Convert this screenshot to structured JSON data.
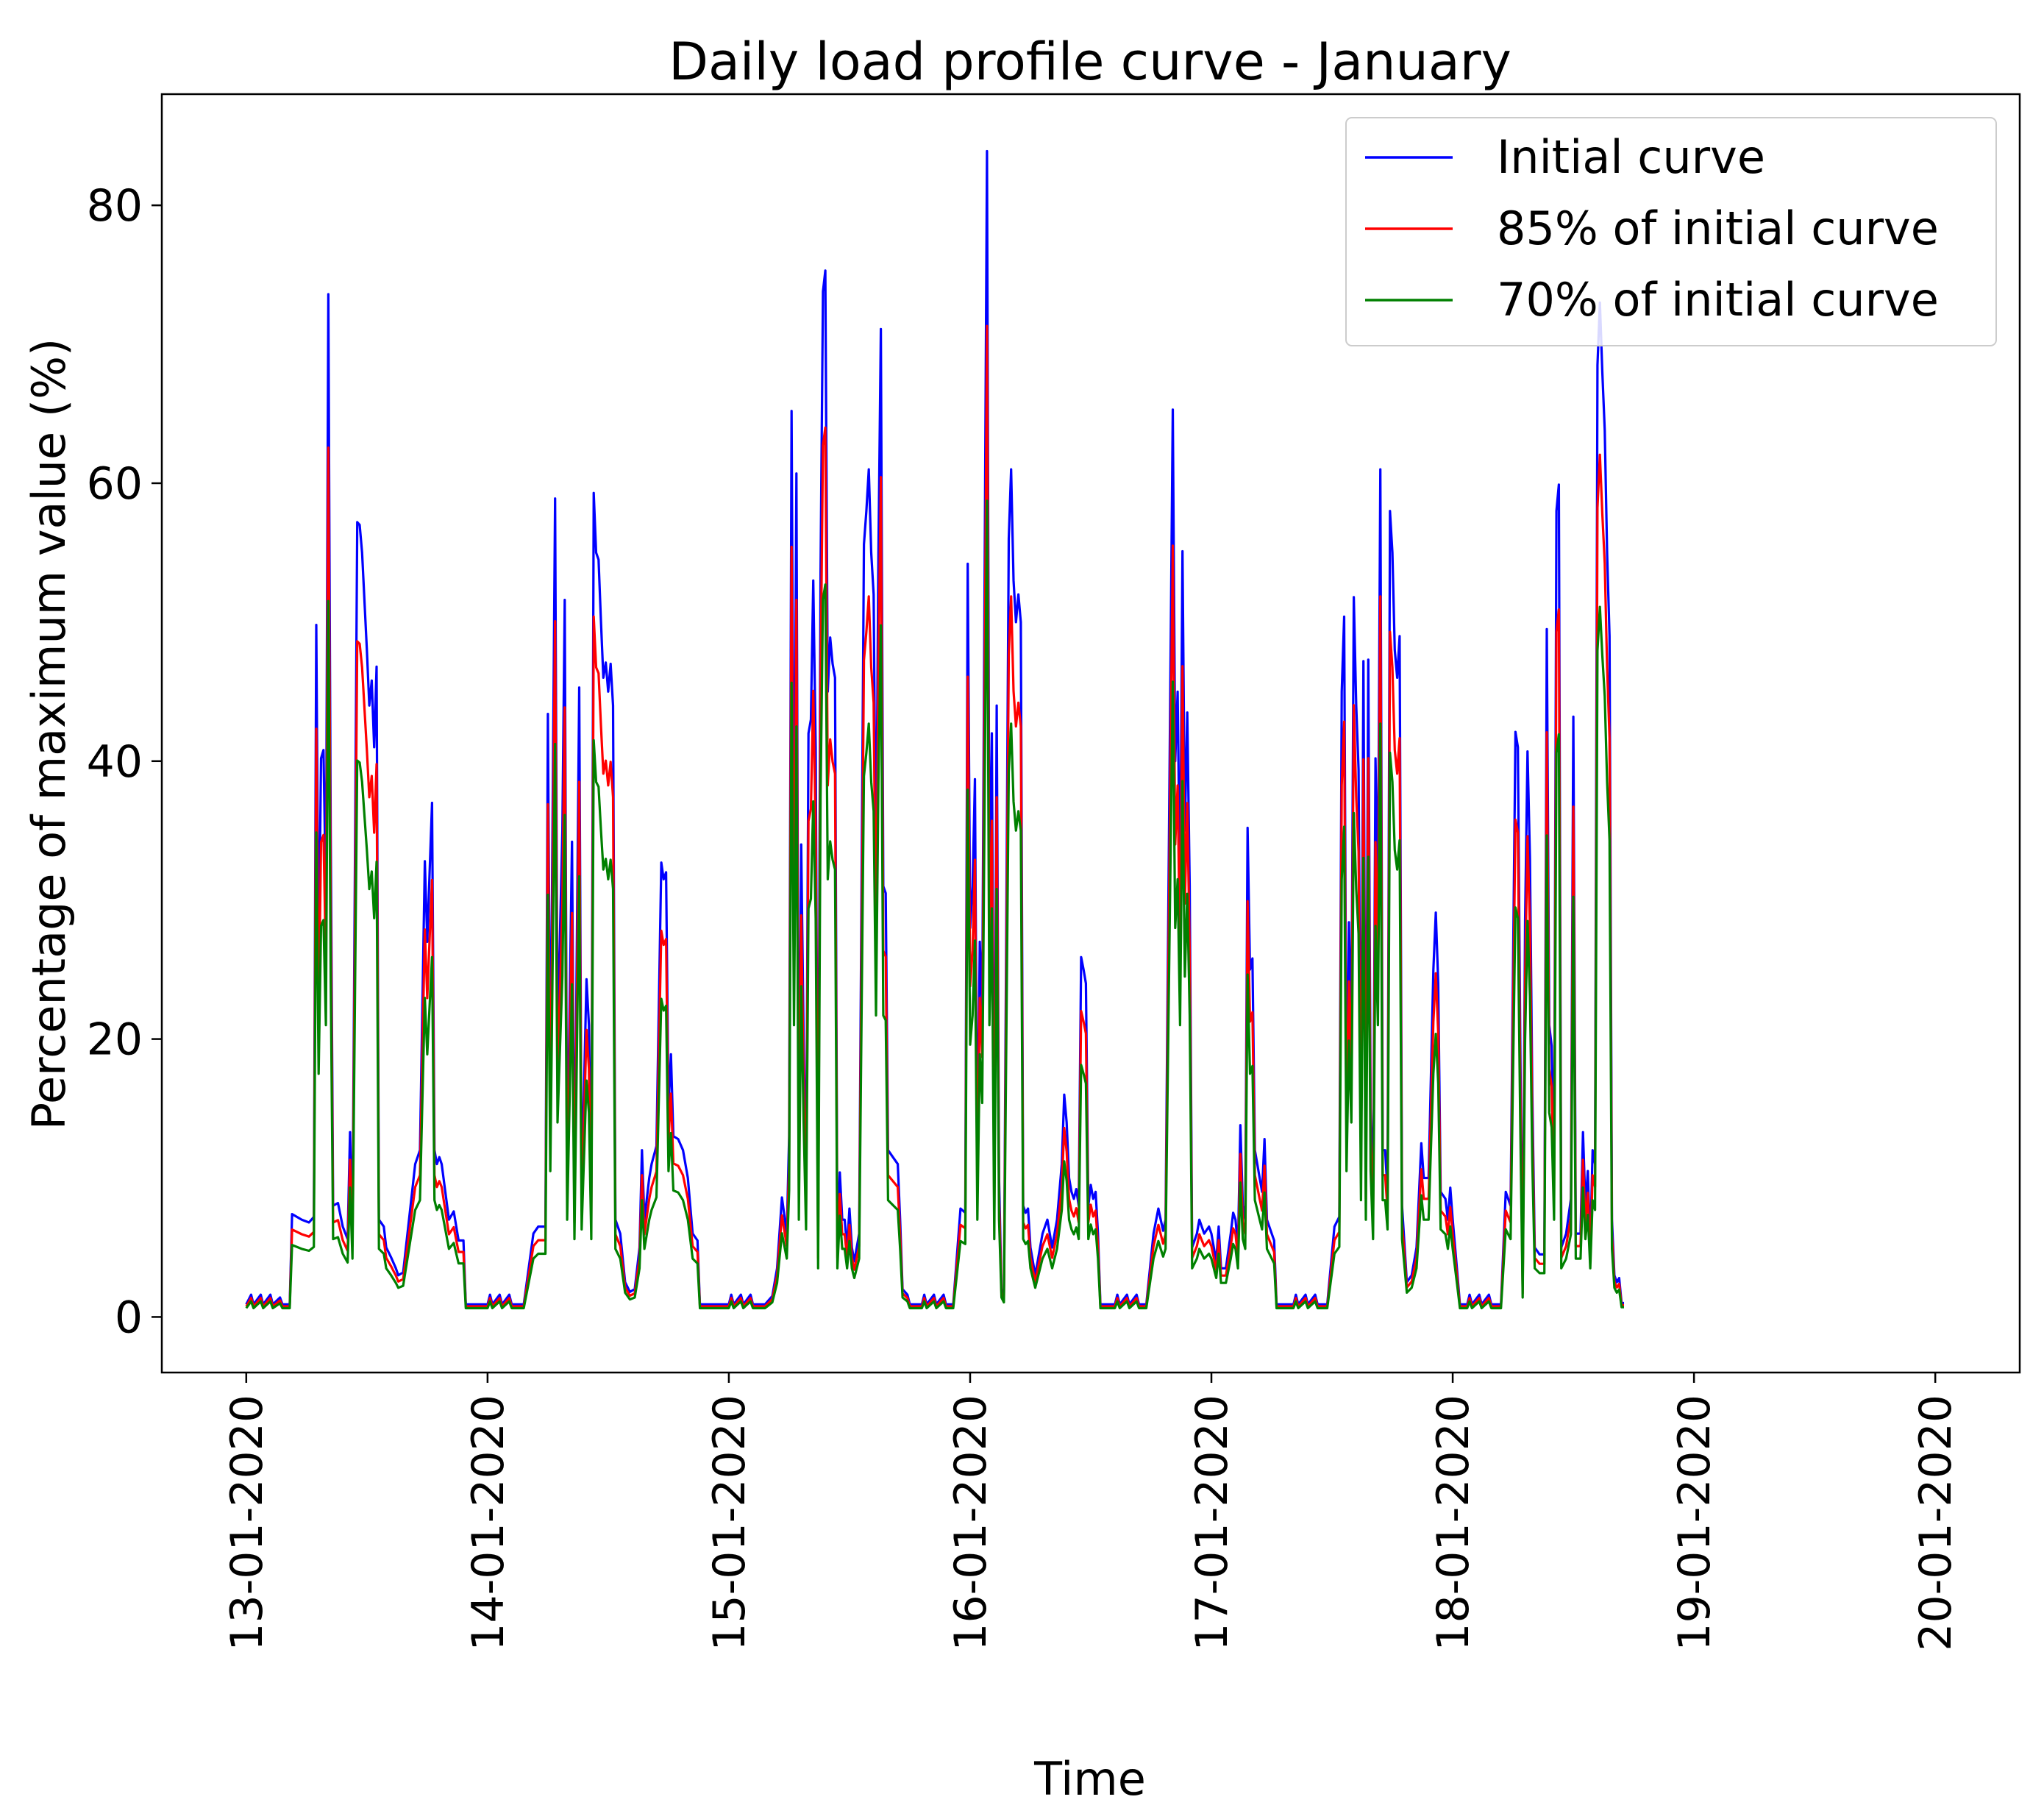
{
  "chart_data": {
    "type": "line",
    "title": "Daily load profile curve - January",
    "xlabel": "Time",
    "ylabel": "Percentage of maximum value (%)",
    "x_range_days": [
      -0.35,
      7.35
    ],
    "ylim": [
      -4,
      88
    ],
    "yticks": [
      0,
      20,
      40,
      60,
      80
    ],
    "xticks": [
      {
        "day": 0,
        "label": "13-01-2020"
      },
      {
        "day": 1,
        "label": "14-01-2020"
      },
      {
        "day": 2,
        "label": "15-01-2020"
      },
      {
        "day": 3,
        "label": "16-01-2020"
      },
      {
        "day": 4,
        "label": "17-01-2020"
      },
      {
        "day": 5,
        "label": "18-01-2020"
      },
      {
        "day": 6,
        "label": "19-01-2020"
      },
      {
        "day": 7,
        "label": "20-01-2020"
      }
    ],
    "grid": false,
    "legend_position": "top-right",
    "series": [
      {
        "name": "Initial curve",
        "color": "#0000ff",
        "factor": 1.0
      },
      {
        "name": "85% of initial curve",
        "color": "#ff0000",
        "factor": 0.85
      },
      {
        "name": "70% of initial curve",
        "color": "#008000",
        "factor": 0.7
      }
    ],
    "base_curve_note": "Initial curve values in % of maximum, sampled points as [day_offset, value]",
    "base_curve": [
      [
        0.0,
        0.9
      ],
      [
        0.02,
        1.6
      ],
      [
        0.03,
        0.9
      ],
      [
        0.06,
        1.6
      ],
      [
        0.07,
        0.9
      ],
      [
        0.1,
        1.6
      ],
      [
        0.11,
        0.9
      ],
      [
        0.14,
        1.4
      ],
      [
        0.15,
        0.9
      ],
      [
        0.18,
        0.9
      ],
      [
        0.19,
        7.4
      ],
      [
        0.23,
        7.0
      ],
      [
        0.26,
        6.8
      ],
      [
        0.28,
        7.2
      ],
      [
        0.29,
        49.8
      ],
      [
        0.3,
        25.0
      ],
      [
        0.31,
        40.2
      ],
      [
        0.32,
        40.8
      ],
      [
        0.33,
        30.0
      ],
      [
        0.34,
        73.6
      ],
      [
        0.35,
        35.0
      ],
      [
        0.36,
        8.0
      ],
      [
        0.38,
        8.2
      ],
      [
        0.4,
        6.5
      ],
      [
        0.42,
        5.6
      ],
      [
        0.43,
        13.3
      ],
      [
        0.44,
        6.0
      ],
      [
        0.46,
        57.2
      ],
      [
        0.47,
        57.0
      ],
      [
        0.48,
        55.0
      ],
      [
        0.5,
        48.0
      ],
      [
        0.51,
        44.0
      ],
      [
        0.52,
        45.8
      ],
      [
        0.53,
        41.0
      ],
      [
        0.54,
        46.8
      ],
      [
        0.55,
        7.0
      ],
      [
        0.57,
        6.5
      ],
      [
        0.58,
        5.0
      ],
      [
        0.6,
        4.3
      ],
      [
        0.62,
        3.5
      ],
      [
        0.63,
        3.0
      ],
      [
        0.65,
        3.2
      ],
      [
        0.7,
        11.0
      ],
      [
        0.72,
        12.0
      ],
      [
        0.74,
        32.8
      ],
      [
        0.75,
        27.0
      ],
      [
        0.76,
        32.0
      ],
      [
        0.77,
        37.0
      ],
      [
        0.78,
        12.0
      ],
      [
        0.79,
        11.0
      ],
      [
        0.8,
        11.5
      ],
      [
        0.81,
        11.0
      ],
      [
        0.84,
        7.0
      ],
      [
        0.86,
        7.6
      ],
      [
        0.88,
        5.5
      ],
      [
        0.9,
        5.5
      ],
      [
        0.91,
        0.9
      ],
      [
        1.0,
        0.9
      ],
      [
        1.01,
        1.6
      ],
      [
        1.02,
        0.9
      ],
      [
        1.05,
        1.6
      ],
      [
        1.06,
        0.9
      ],
      [
        1.09,
        1.6
      ],
      [
        1.1,
        0.9
      ],
      [
        1.15,
        0.9
      ],
      [
        1.19,
        6.0
      ],
      [
        1.21,
        6.5
      ],
      [
        1.24,
        6.5
      ],
      [
        1.25,
        43.4
      ],
      [
        1.26,
        15.0
      ],
      [
        1.28,
        58.9
      ],
      [
        1.29,
        20.0
      ],
      [
        1.31,
        35.0
      ],
      [
        1.32,
        51.6
      ],
      [
        1.33,
        10.0
      ],
      [
        1.35,
        34.2
      ],
      [
        1.36,
        8.0
      ],
      [
        1.38,
        45.3
      ],
      [
        1.39,
        9.0
      ],
      [
        1.41,
        24.3
      ],
      [
        1.42,
        21.0
      ],
      [
        1.43,
        8.0
      ],
      [
        1.44,
        59.3
      ],
      [
        1.45,
        55.0
      ],
      [
        1.46,
        54.5
      ],
      [
        1.47,
        50.0
      ],
      [
        1.48,
        46.0
      ],
      [
        1.49,
        47.1
      ],
      [
        1.5,
        45.0
      ],
      [
        1.51,
        47.0
      ],
      [
        1.52,
        44.0
      ],
      [
        1.53,
        7.0
      ],
      [
        1.55,
        6.0
      ],
      [
        1.57,
        2.5
      ],
      [
        1.59,
        1.8
      ],
      [
        1.61,
        2.0
      ],
      [
        1.63,
        5.0
      ],
      [
        1.64,
        12.0
      ],
      [
        1.65,
        7.0
      ],
      [
        1.67,
        10.0
      ],
      [
        1.68,
        11.0
      ],
      [
        1.7,
        12.3
      ],
      [
        1.72,
        32.7
      ],
      [
        1.73,
        31.5
      ],
      [
        1.74,
        32.0
      ],
      [
        1.75,
        15.0
      ],
      [
        1.76,
        18.9
      ],
      [
        1.77,
        13.0
      ],
      [
        1.79,
        12.8
      ],
      [
        1.81,
        12.0
      ],
      [
        1.83,
        10.0
      ],
      [
        1.85,
        6.0
      ],
      [
        1.87,
        5.5
      ],
      [
        1.88,
        0.9
      ],
      [
        2.0,
        0.9
      ],
      [
        2.01,
        1.6
      ],
      [
        2.02,
        0.9
      ],
      [
        2.05,
        1.6
      ],
      [
        2.06,
        0.9
      ],
      [
        2.09,
        1.6
      ],
      [
        2.1,
        0.9
      ],
      [
        2.15,
        0.9
      ],
      [
        2.18,
        1.5
      ],
      [
        2.2,
        3.5
      ],
      [
        2.22,
        8.6
      ],
      [
        2.24,
        6.0
      ],
      [
        2.25,
        13.0
      ],
      [
        2.26,
        65.2
      ],
      [
        2.27,
        30.0
      ],
      [
        2.28,
        60.7
      ],
      [
        2.29,
        10.0
      ],
      [
        2.3,
        34.0
      ],
      [
        2.31,
        20.0
      ],
      [
        2.32,
        9.0
      ],
      [
        2.33,
        42.0
      ],
      [
        2.34,
        43.0
      ],
      [
        2.35,
        53.0
      ],
      [
        2.36,
        41.0
      ],
      [
        2.37,
        5.0
      ],
      [
        2.38,
        53.5
      ],
      [
        2.39,
        73.8
      ],
      [
        2.4,
        75.3
      ],
      [
        2.41,
        45.0
      ],
      [
        2.42,
        48.9
      ],
      [
        2.43,
        47.0
      ],
      [
        2.44,
        46.0
      ],
      [
        2.45,
        5.0
      ],
      [
        2.46,
        10.4
      ],
      [
        2.47,
        7.0
      ],
      [
        2.48,
        7.0
      ],
      [
        2.49,
        5.0
      ],
      [
        2.5,
        7.8
      ],
      [
        2.51,
        5.0
      ],
      [
        2.52,
        4.0
      ],
      [
        2.54,
        6.0
      ],
      [
        2.56,
        55.6
      ],
      [
        2.57,
        58.0
      ],
      [
        2.58,
        61.0
      ],
      [
        2.59,
        55.0
      ],
      [
        2.6,
        52.0
      ],
      [
        2.61,
        31.0
      ],
      [
        2.62,
        55.0
      ],
      [
        2.63,
        71.1
      ],
      [
        2.64,
        31.0
      ],
      [
        2.65,
        30.5
      ],
      [
        2.66,
        12.0
      ],
      [
        2.68,
        11.5
      ],
      [
        2.7,
        11.0
      ],
      [
        2.71,
        7.0
      ],
      [
        2.72,
        2.0
      ],
      [
        2.74,
        1.6
      ],
      [
        2.75,
        0.9
      ],
      [
        2.8,
        0.9
      ],
      [
        2.81,
        1.6
      ],
      [
        2.82,
        0.9
      ],
      [
        2.85,
        1.6
      ],
      [
        2.86,
        0.9
      ],
      [
        2.89,
        1.6
      ],
      [
        2.9,
        0.9
      ],
      [
        2.93,
        0.9
      ],
      [
        2.96,
        7.8
      ],
      [
        2.98,
        7.5
      ],
      [
        2.99,
        54.2
      ],
      [
        3.0,
        28.0
      ],
      [
        3.01,
        31.0
      ],
      [
        3.02,
        38.7
      ],
      [
        3.03,
        10.0
      ],
      [
        3.04,
        27.0
      ],
      [
        3.05,
        22.0
      ],
      [
        3.07,
        83.9
      ],
      [
        3.08,
        30.0
      ],
      [
        3.09,
        42.0
      ],
      [
        3.1,
        8.0
      ],
      [
        3.11,
        44.0
      ],
      [
        3.12,
        10.0
      ],
      [
        3.13,
        2.0
      ],
      [
        3.14,
        1.5
      ],
      [
        3.16,
        56.0
      ],
      [
        3.17,
        61.0
      ],
      [
        3.18,
        53.0
      ],
      [
        3.19,
        50.0
      ],
      [
        3.2,
        52.0
      ],
      [
        3.21,
        50.0
      ],
      [
        3.22,
        8.0
      ],
      [
        3.23,
        7.5
      ],
      [
        3.24,
        7.8
      ],
      [
        3.25,
        5.0
      ],
      [
        3.27,
        3.0
      ],
      [
        3.28,
        4.0
      ],
      [
        3.3,
        6.0
      ],
      [
        3.32,
        7.0
      ],
      [
        3.34,
        5.0
      ],
      [
        3.36,
        7.0
      ],
      [
        3.38,
        11.0
      ],
      [
        3.39,
        16.0
      ],
      [
        3.4,
        14.0
      ],
      [
        3.41,
        10.0
      ],
      [
        3.42,
        9.0
      ],
      [
        3.43,
        8.5
      ],
      [
        3.44,
        9.2
      ],
      [
        3.45,
        8.0
      ],
      [
        3.46,
        25.9
      ],
      [
        3.47,
        25.0
      ],
      [
        3.48,
        24.0
      ],
      [
        3.49,
        8.0
      ],
      [
        3.5,
        9.5
      ],
      [
        3.51,
        8.5
      ],
      [
        3.52,
        9.0
      ],
      [
        3.53,
        6.0
      ],
      [
        3.54,
        0.9
      ],
      [
        3.6,
        0.9
      ],
      [
        3.61,
        1.6
      ],
      [
        3.62,
        0.9
      ],
      [
        3.65,
        1.6
      ],
      [
        3.66,
        0.9
      ],
      [
        3.69,
        1.6
      ],
      [
        3.7,
        0.9
      ],
      [
        3.73,
        0.9
      ],
      [
        3.76,
        6.0
      ],
      [
        3.78,
        7.8
      ],
      [
        3.79,
        7.0
      ],
      [
        3.8,
        6.2
      ],
      [
        3.81,
        7.0
      ],
      [
        3.84,
        65.3
      ],
      [
        3.85,
        40.0
      ],
      [
        3.86,
        45.0
      ],
      [
        3.87,
        30.0
      ],
      [
        3.88,
        55.1
      ],
      [
        3.89,
        35.0
      ],
      [
        3.9,
        43.5
      ],
      [
        3.91,
        31.0
      ],
      [
        3.92,
        5.0
      ],
      [
        3.94,
        6.0
      ],
      [
        3.95,
        7.0
      ],
      [
        3.97,
        6.0
      ],
      [
        3.99,
        6.5
      ],
      [
        4.0,
        6.0
      ],
      [
        4.02,
        4.0
      ],
      [
        4.03,
        6.5
      ],
      [
        4.04,
        3.5
      ],
      [
        4.06,
        3.5
      ],
      [
        4.08,
        6.0
      ],
      [
        4.09,
        7.5
      ],
      [
        4.1,
        7.0
      ],
      [
        4.11,
        5.0
      ],
      [
        4.12,
        13.8
      ],
      [
        4.13,
        8.0
      ],
      [
        4.14,
        7.0
      ],
      [
        4.15,
        35.2
      ],
      [
        4.16,
        25.0
      ],
      [
        4.17,
        25.8
      ],
      [
        4.18,
        12.0
      ],
      [
        4.19,
        11.0
      ],
      [
        4.2,
        10.0
      ],
      [
        4.21,
        9.0
      ],
      [
        4.22,
        12.8
      ],
      [
        4.23,
        7.0
      ],
      [
        4.25,
        6.0
      ],
      [
        4.26,
        5.5
      ],
      [
        4.27,
        0.9
      ],
      [
        4.34,
        0.9
      ],
      [
        4.35,
        1.6
      ],
      [
        4.36,
        0.9
      ],
      [
        4.39,
        1.6
      ],
      [
        4.4,
        0.9
      ],
      [
        4.43,
        1.6
      ],
      [
        4.44,
        0.9
      ],
      [
        4.48,
        0.9
      ],
      [
        4.51,
        6.5
      ],
      [
        4.53,
        7.2
      ],
      [
        4.54,
        45.0
      ],
      [
        4.55,
        50.4
      ],
      [
        4.56,
        15.0
      ],
      [
        4.57,
        28.4
      ],
      [
        4.58,
        20.0
      ],
      [
        4.59,
        51.8
      ],
      [
        4.6,
        44.0
      ],
      [
        4.61,
        39.4
      ],
      [
        4.62,
        12.0
      ],
      [
        4.63,
        47.2
      ],
      [
        4.64,
        10.0
      ],
      [
        4.65,
        47.3
      ],
      [
        4.66,
        15.0
      ],
      [
        4.67,
        8.0
      ],
      [
        4.68,
        40.2
      ],
      [
        4.69,
        30.0
      ],
      [
        4.7,
        61.0
      ],
      [
        4.71,
        12.0
      ],
      [
        4.72,
        12.0
      ],
      [
        4.73,
        9.0
      ],
      [
        4.74,
        58.0
      ],
      [
        4.75,
        55.0
      ],
      [
        4.76,
        48.0
      ],
      [
        4.77,
        46.0
      ],
      [
        4.78,
        49.0
      ],
      [
        4.79,
        8.0
      ],
      [
        4.81,
        2.5
      ],
      [
        4.83,
        3.0
      ],
      [
        4.85,
        5.0
      ],
      [
        4.87,
        12.5
      ],
      [
        4.88,
        10.0
      ],
      [
        4.9,
        10.0
      ],
      [
        4.92,
        25.0
      ],
      [
        4.93,
        29.1
      ],
      [
        4.94,
        24.0
      ],
      [
        4.95,
        9.0
      ],
      [
        4.97,
        8.5
      ],
      [
        4.98,
        7.0
      ],
      [
        4.99,
        9.3
      ],
      [
        5.0,
        7.0
      ],
      [
        5.02,
        3.0
      ],
      [
        5.03,
        0.9
      ],
      [
        5.06,
        0.9
      ],
      [
        5.07,
        1.6
      ],
      [
        5.08,
        0.9
      ],
      [
        5.11,
        1.6
      ],
      [
        5.12,
        0.9
      ],
      [
        5.15,
        1.6
      ],
      [
        5.16,
        0.9
      ],
      [
        5.2,
        0.9
      ],
      [
        5.22,
        9.0
      ],
      [
        5.24,
        8.0
      ],
      [
        5.26,
        42.1
      ],
      [
        5.27,
        41.0
      ],
      [
        5.28,
        20.0
      ],
      [
        5.29,
        2.0
      ],
      [
        5.3,
        28.5
      ],
      [
        5.31,
        40.7
      ],
      [
        5.32,
        33.0
      ],
      [
        5.33,
        16.0
      ],
      [
        5.34,
        5.0
      ],
      [
        5.36,
        4.5
      ],
      [
        5.38,
        4.5
      ],
      [
        5.39,
        49.5
      ],
      [
        5.4,
        21.0
      ],
      [
        5.41,
        19.5
      ],
      [
        5.42,
        10.0
      ],
      [
        5.43,
        58.0
      ],
      [
        5.44,
        59.9
      ],
      [
        5.45,
        5.0
      ],
      [
        5.47,
        6.0
      ],
      [
        5.49,
        8.5
      ],
      [
        5.5,
        43.2
      ],
      [
        5.51,
        6.0
      ],
      [
        5.53,
        6.0
      ],
      [
        5.54,
        13.3
      ],
      [
        5.55,
        8.0
      ],
      [
        5.56,
        10.5
      ],
      [
        5.57,
        5.0
      ],
      [
        5.58,
        12.0
      ],
      [
        5.59,
        11.0
      ],
      [
        5.6,
        68.5
      ],
      [
        5.61,
        73.0
      ],
      [
        5.62,
        68.0
      ],
      [
        5.63,
        63.8
      ],
      [
        5.64,
        55.0
      ],
      [
        5.65,
        49.0
      ],
      [
        5.66,
        7.0
      ],
      [
        5.67,
        3.0
      ],
      [
        5.68,
        2.5
      ],
      [
        5.69,
        2.8
      ],
      [
        5.7,
        1.0
      ],
      [
        5.71,
        1.0
      ]
    ]
  }
}
